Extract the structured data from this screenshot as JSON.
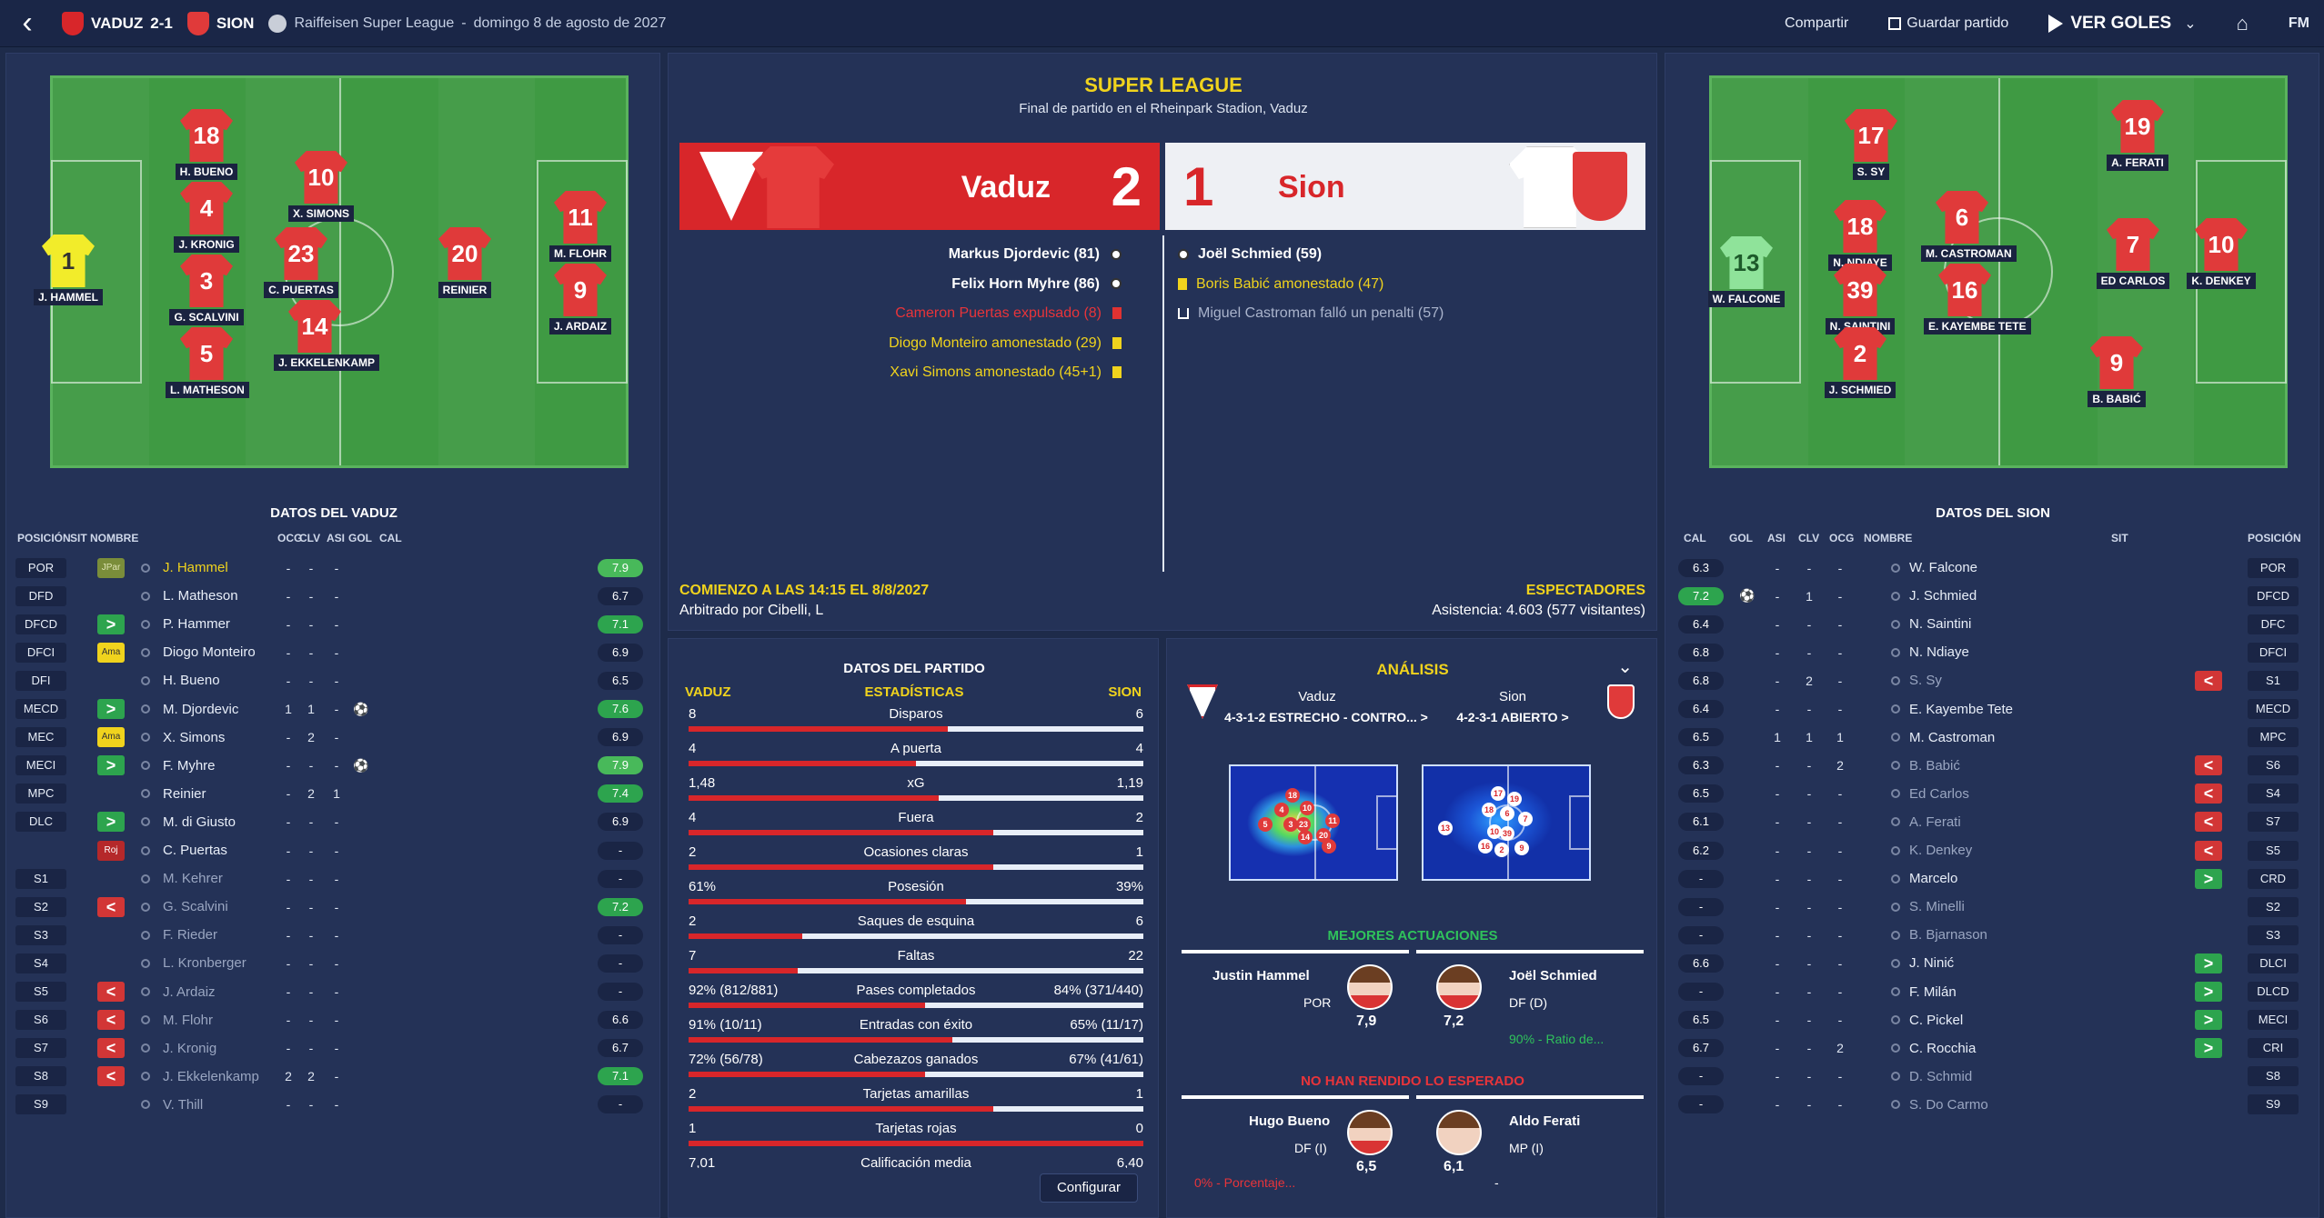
{
  "topbar": {
    "home_team_abbr": "VADUZ",
    "score": "2-1",
    "away_team_abbr": "SION",
    "competition": "Raiffeisen Super League",
    "date": "domingo 8 de agosto de 2027",
    "share": "Compartir",
    "save": "Guardar partido",
    "goals": "VER GOLES",
    "fm": "FM"
  },
  "header": {
    "competition": "SUPER LEAGUE",
    "subtitle": "Final de partido en el Rheinpark Stadion, Vaduz",
    "home": "Vaduz",
    "away": "Sion",
    "home_score": "2",
    "away_score": "1"
  },
  "events": {
    "home": [
      "Markus Djordevic (81)",
      "Felix Horn Myhre (86)",
      "Cameron Puertas expulsado (8)",
      "Diogo Monteiro amonestado (29)",
      "Xavi Simons amonestado (45+1)"
    ],
    "away": [
      "Joël Schmied (59)",
      "Boris Babić amonestado (47)",
      "Miguel Castroman falló un penalti (57)"
    ]
  },
  "match_info": {
    "kickoff": "COMIENZO A LAS 14:15 EL 8/8/2027",
    "referee": "Arbitrado por Cibelli, L",
    "spectators_label": "ESPECTADORES",
    "attendance": "Asistencia: 4.603 (577 visitantes)"
  },
  "home_pitch": [
    {
      "n": "1",
      "name": "J. HAMMEL",
      "gk": true
    },
    {
      "n": "18",
      "name": "H. BUENO"
    },
    {
      "n": "4",
      "name": "J. KRONIG"
    },
    {
      "n": "3",
      "name": "G. SCALVINI"
    },
    {
      "n": "5",
      "name": "L. MATHESON"
    },
    {
      "n": "10",
      "name": "X. SIMONS"
    },
    {
      "n": "23",
      "name": "C. PUERTAS"
    },
    {
      "n": "14",
      "name": "J. EKKELENKAMP"
    },
    {
      "n": "20",
      "name": "REINIER"
    },
    {
      "n": "11",
      "name": "M. FLOHR"
    },
    {
      "n": "9",
      "name": "J. ARDAIZ"
    }
  ],
  "away_pitch": [
    {
      "n": "17",
      "name": "S. SY"
    },
    {
      "n": "19",
      "name": "A. FERATI"
    },
    {
      "n": "18",
      "name": "N. NDIAYE"
    },
    {
      "n": "6",
      "name": "M. CASTROMAN"
    },
    {
      "n": "13",
      "name": "W. FALCONE",
      "gk": true
    },
    {
      "n": "7",
      "name": "ED CARLOS"
    },
    {
      "n": "10",
      "name": "K. DENKEY"
    },
    {
      "n": "39",
      "name": "N. SAINTINI"
    },
    {
      "n": "16",
      "name": "E. KAYEMBE TETE"
    },
    {
      "n": "2",
      "name": "J. SCHMIED"
    },
    {
      "n": "9",
      "name": "B. BABIĆ"
    }
  ],
  "home_table": {
    "title": "DATOS DEL VADUZ",
    "headers": [
      "POSICIÓN",
      "SIT",
      "NOMBRE",
      "OCG",
      "CLV",
      "ASI",
      "GOL",
      "CAL"
    ],
    "rows": [
      {
        "pos": "POR",
        "sit": "JPar",
        "sitc": "jpar",
        "name": "J. Hammel",
        "hl": true,
        "ocg": "-",
        "clv": "-",
        "asi": "-",
        "gol": "",
        "cal": "7.9",
        "rc": "gl"
      },
      {
        "pos": "DFD",
        "sit": "",
        "sitc": "",
        "name": "L. Matheson",
        "ocg": "-",
        "clv": "-",
        "asi": "-",
        "gol": "",
        "cal": "6.7",
        "rc": ""
      },
      {
        "pos": "DFCD",
        "sit": ">",
        "sitc": "in",
        "name": "P. Hammer",
        "ocg": "-",
        "clv": "-",
        "asi": "-",
        "gol": "",
        "cal": "7.1",
        "rc": "g"
      },
      {
        "pos": "DFCI",
        "sit": "Ama",
        "sitc": "ama",
        "name": "Diogo Monteiro",
        "ocg": "-",
        "clv": "-",
        "asi": "-",
        "gol": "",
        "cal": "6.9",
        "rc": ""
      },
      {
        "pos": "DFI",
        "sit": "",
        "sitc": "",
        "name": "H. Bueno",
        "ocg": "-",
        "clv": "-",
        "asi": "-",
        "gol": "",
        "cal": "6.5",
        "rc": ""
      },
      {
        "pos": "MECD",
        "sit": ">",
        "sitc": "in",
        "name": "M. Djordevic",
        "ocg": "1",
        "clv": "1",
        "asi": "-",
        "gol": "⚽",
        "cal": "7.6",
        "rc": "g"
      },
      {
        "pos": "MEC",
        "sit": "Ama",
        "sitc": "ama",
        "name": "X. Simons",
        "ocg": "-",
        "clv": "2",
        "asi": "-",
        "gol": "",
        "cal": "6.9",
        "rc": ""
      },
      {
        "pos": "MECI",
        "sit": ">",
        "sitc": "in",
        "name": "F. Myhre",
        "ocg": "-",
        "clv": "-",
        "asi": "-",
        "gol": "⚽",
        "cal": "7.9",
        "rc": "gl"
      },
      {
        "pos": "MPC",
        "sit": "",
        "sitc": "",
        "name": "Reinier",
        "ocg": "-",
        "clv": "2",
        "asi": "1",
        "gol": "",
        "cal": "7.4",
        "rc": "g"
      },
      {
        "pos": "DLC",
        "sit": ">",
        "sitc": "in",
        "name": "M. di Giusto",
        "ocg": "-",
        "clv": "-",
        "asi": "-",
        "gol": "",
        "cal": "6.9",
        "rc": ""
      },
      {
        "pos": "",
        "sit": "Roj",
        "sitc": "roj",
        "name": "C. Puertas",
        "ocg": "-",
        "clv": "-",
        "asi": "-",
        "gol": "",
        "cal": "-",
        "rc": ""
      },
      {
        "pos": "S1",
        "sit": "",
        "sitc": "",
        "name": "M. Kehrer",
        "dim": true,
        "ocg": "-",
        "clv": "-",
        "asi": "-",
        "gol": "",
        "cal": "-",
        "rc": ""
      },
      {
        "pos": "S2",
        "sit": "<",
        "sitc": "out",
        "name": "G. Scalvini",
        "dim": true,
        "ocg": "-",
        "clv": "-",
        "asi": "-",
        "gol": "",
        "cal": "7.2",
        "rc": "g"
      },
      {
        "pos": "S3",
        "sit": "",
        "sitc": "",
        "name": "F. Rieder",
        "dim": true,
        "ocg": "-",
        "clv": "-",
        "asi": "-",
        "gol": "",
        "cal": "-",
        "rc": ""
      },
      {
        "pos": "S4",
        "sit": "",
        "sitc": "",
        "name": "L. Kronberger",
        "dim": true,
        "ocg": "-",
        "clv": "-",
        "asi": "-",
        "gol": "",
        "cal": "-",
        "rc": ""
      },
      {
        "pos": "S5",
        "sit": "<",
        "sitc": "out",
        "name": "J. Ardaiz",
        "dim": true,
        "ocg": "-",
        "clv": "-",
        "asi": "-",
        "gol": "",
        "cal": "-",
        "rc": ""
      },
      {
        "pos": "S6",
        "sit": "<",
        "sitc": "out",
        "name": "M. Flohr",
        "dim": true,
        "ocg": "-",
        "clv": "-",
        "asi": "-",
        "gol": "",
        "cal": "6.6",
        "rc": ""
      },
      {
        "pos": "S7",
        "sit": "<",
        "sitc": "out",
        "name": "J. Kronig",
        "dim": true,
        "ocg": "-",
        "clv": "-",
        "asi": "-",
        "gol": "",
        "cal": "6.7",
        "rc": ""
      },
      {
        "pos": "S8",
        "sit": "<",
        "sitc": "out",
        "name": "J. Ekkelenkamp",
        "dim": true,
        "ocg": "2",
        "clv": "2",
        "asi": "-",
        "gol": "",
        "cal": "7.1",
        "rc": "g"
      },
      {
        "pos": "S9",
        "sit": "",
        "sitc": "",
        "name": "V. Thill",
        "dim": true,
        "ocg": "-",
        "clv": "-",
        "asi": "-",
        "gol": "",
        "cal": "-",
        "rc": ""
      }
    ]
  },
  "away_table": {
    "title": "DATOS DEL SION",
    "headers": [
      "CAL",
      "GOL",
      "ASI",
      "CLV",
      "OCG",
      "NOMBRE",
      "SIT",
      "POSICIÓN"
    ],
    "rows": [
      {
        "pos": "POR",
        "sit": "",
        "sitc": "",
        "name": "W. Falcone",
        "ocg": "-",
        "clv": "-",
        "asi": "-",
        "gol": "",
        "cal": "6.3",
        "rc": ""
      },
      {
        "pos": "DFCD",
        "sit": "",
        "sitc": "",
        "name": "J. Schmied",
        "ocg": "-",
        "clv": "1",
        "asi": "-",
        "gol": "⚽",
        "cal": "7.2",
        "rc": "g"
      },
      {
        "pos": "DFC",
        "sit": "",
        "sitc": "",
        "name": "N. Saintini",
        "ocg": "-",
        "clv": "-",
        "asi": "-",
        "gol": "",
        "cal": "6.4",
        "rc": ""
      },
      {
        "pos": "DFCI",
        "sit": "",
        "sitc": "",
        "name": "N. Ndiaye",
        "ocg": "-",
        "clv": "-",
        "asi": "-",
        "gol": "",
        "cal": "6.8",
        "rc": ""
      },
      {
        "pos": "S1",
        "sit": "<",
        "sitc": "out",
        "name": "S. Sy",
        "dim": true,
        "ocg": "-",
        "clv": "2",
        "asi": "-",
        "gol": "",
        "cal": "6.8",
        "rc": ""
      },
      {
        "pos": "MECD",
        "sit": "",
        "sitc": "",
        "name": "E. Kayembe Tete",
        "ocg": "-",
        "clv": "-",
        "asi": "-",
        "gol": "",
        "cal": "6.4",
        "rc": ""
      },
      {
        "pos": "MPC",
        "sit": "",
        "sitc": "",
        "name": "M. Castroman",
        "ocg": "1",
        "clv": "1",
        "asi": "1",
        "gol": "",
        "cal": "6.5",
        "rc": ""
      },
      {
        "pos": "S6",
        "sit": "<",
        "sitc": "out",
        "name": "B. Babić",
        "dim": true,
        "ocg": "2",
        "clv": "-",
        "asi": "-",
        "gol": "",
        "cal": "6.3",
        "rc": ""
      },
      {
        "pos": "S4",
        "sit": "<",
        "sitc": "out",
        "name": "Ed Carlos",
        "dim": true,
        "ocg": "-",
        "clv": "-",
        "asi": "-",
        "gol": "",
        "cal": "6.5",
        "rc": ""
      },
      {
        "pos": "S7",
        "sit": "<",
        "sitc": "out",
        "name": "A. Ferati",
        "dim": true,
        "ocg": "-",
        "clv": "-",
        "asi": "-",
        "gol": "",
        "cal": "6.1",
        "rc": ""
      },
      {
        "pos": "S5",
        "sit": "<",
        "sitc": "out",
        "name": "K. Denkey",
        "dim": true,
        "ocg": "-",
        "clv": "-",
        "asi": "-",
        "gol": "",
        "cal": "6.2",
        "rc": ""
      },
      {
        "pos": "CRD",
        "sit": ">",
        "sitc": "in",
        "name": "Marcelo",
        "ocg": "-",
        "clv": "-",
        "asi": "-",
        "gol": "",
        "cal": "-",
        "rc": ""
      },
      {
        "pos": "S2",
        "sit": "",
        "sitc": "",
        "name": "S. Minelli",
        "dim": true,
        "ocg": "-",
        "clv": "-",
        "asi": "-",
        "gol": "",
        "cal": "-",
        "rc": ""
      },
      {
        "pos": "S3",
        "sit": "",
        "sitc": "",
        "name": "B. Bjarnason",
        "dim": true,
        "ocg": "-",
        "clv": "-",
        "asi": "-",
        "gol": "",
        "cal": "-",
        "rc": ""
      },
      {
        "pos": "DLCI",
        "sit": ">",
        "sitc": "in",
        "name": "J. Ninić",
        "ocg": "-",
        "clv": "-",
        "asi": "-",
        "gol": "",
        "cal": "6.6",
        "rc": ""
      },
      {
        "pos": "DLCD",
        "sit": ">",
        "sitc": "in",
        "name": "F. Milán",
        "ocg": "-",
        "clv": "-",
        "asi": "-",
        "gol": "",
        "cal": "-",
        "rc": ""
      },
      {
        "pos": "MECI",
        "sit": ">",
        "sitc": "in",
        "name": "C. Pickel",
        "ocg": "-",
        "clv": "-",
        "asi": "-",
        "gol": "",
        "cal": "6.5",
        "rc": ""
      },
      {
        "pos": "CRI",
        "sit": ">",
        "sitc": "in",
        "name": "C. Rocchia",
        "ocg": "2",
        "clv": "-",
        "asi": "-",
        "gol": "",
        "cal": "6.7",
        "rc": ""
      },
      {
        "pos": "S8",
        "sit": "",
        "sitc": "",
        "name": "D. Schmid",
        "dim": true,
        "ocg": "-",
        "clv": "-",
        "asi": "-",
        "gol": "",
        "cal": "-",
        "rc": ""
      },
      {
        "pos": "S9",
        "sit": "",
        "sitc": "",
        "name": "S. Do Carmo",
        "dim": true,
        "ocg": "-",
        "clv": "-",
        "asi": "-",
        "gol": "",
        "cal": "-",
        "rc": ""
      }
    ]
  },
  "stats": {
    "title": "DATOS DEL PARTIDO",
    "home": "VADUZ",
    "label": "ESTADÍSTICAS",
    "away": "SION",
    "configure": "Configurar",
    "rows": [
      {
        "l": "8",
        "name": "Disparos",
        "r": "6",
        "f": 0.57
      },
      {
        "l": "4",
        "name": "A puerta",
        "r": "4",
        "f": 0.5
      },
      {
        "l": "1,48",
        "name": "xG",
        "r": "1,19",
        "f": 0.55
      },
      {
        "l": "4",
        "name": "Fuera",
        "r": "2",
        "f": 0.67
      },
      {
        "l": "2",
        "name": "Ocasiones claras",
        "r": "1",
        "f": 0.67
      },
      {
        "l": "61%",
        "name": "Posesión",
        "r": "39%",
        "f": 0.61
      },
      {
        "l": "2",
        "name": "Saques de esquina",
        "r": "6",
        "f": 0.25
      },
      {
        "l": "7",
        "name": "Faltas",
        "r": "22",
        "f": 0.24
      },
      {
        "l": "92% (812/881)",
        "name": "Pases completados",
        "r": "84% (371/440)",
        "f": 0.52
      },
      {
        "l": "91% (10/11)",
        "name": "Entradas con éxito",
        "r": "65% (11/17)",
        "f": 0.58
      },
      {
        "l": "72% (56/78)",
        "name": "Cabezazos ganados",
        "r": "67% (41/61)",
        "f": 0.52
      },
      {
        "l": "2",
        "name": "Tarjetas amarillas",
        "r": "1",
        "f": 0.67
      },
      {
        "l": "1",
        "name": "Tarjetas rojas",
        "r": "0",
        "f": 1.0
      },
      {
        "l": "7,01",
        "name": "Calificación media",
        "r": "6,40",
        "f": 0.52
      }
    ]
  },
  "analysis": {
    "title": "ANÁLISIS",
    "home": "Vaduz",
    "away": "Sion",
    "home_form": "4-3-1-2 ESTRECHO - CONTRO... >",
    "away_form": "4-2-3-1 ABIERTO >",
    "home_dots": [
      "18",
      "4",
      "10",
      "3",
      "23",
      "11",
      "5",
      "14",
      "20",
      "9"
    ],
    "away_dots": [
      "17",
      "19",
      "18",
      "6",
      "7",
      "13",
      "10",
      "39",
      "16",
      "2",
      "9"
    ],
    "best_title": "MEJORES ACTUACIONES",
    "best": [
      {
        "name": "Justin Hammel",
        "pos": "POR",
        "rating": "7,9"
      },
      {
        "name": "Joël Schmied",
        "pos": "DF (D)",
        "rating": "7,2",
        "note": "90% - Ratio de..."
      }
    ],
    "worst_title": "NO HAN RENDIDO LO ESPERADO",
    "worst": [
      {
        "name": "Hugo Bueno",
        "pos": "DF (I)",
        "rating": "6,5",
        "note": "0% - Porcentaje..."
      },
      {
        "name": "Aldo Ferati",
        "pos": "MP (I)",
        "rating": "6,1",
        "note": "-"
      }
    ]
  },
  "colors": {
    "red": "#d8262a",
    "green": "#2da44e",
    "yellow": "#f0d31d",
    "panel": "#243257"
  }
}
